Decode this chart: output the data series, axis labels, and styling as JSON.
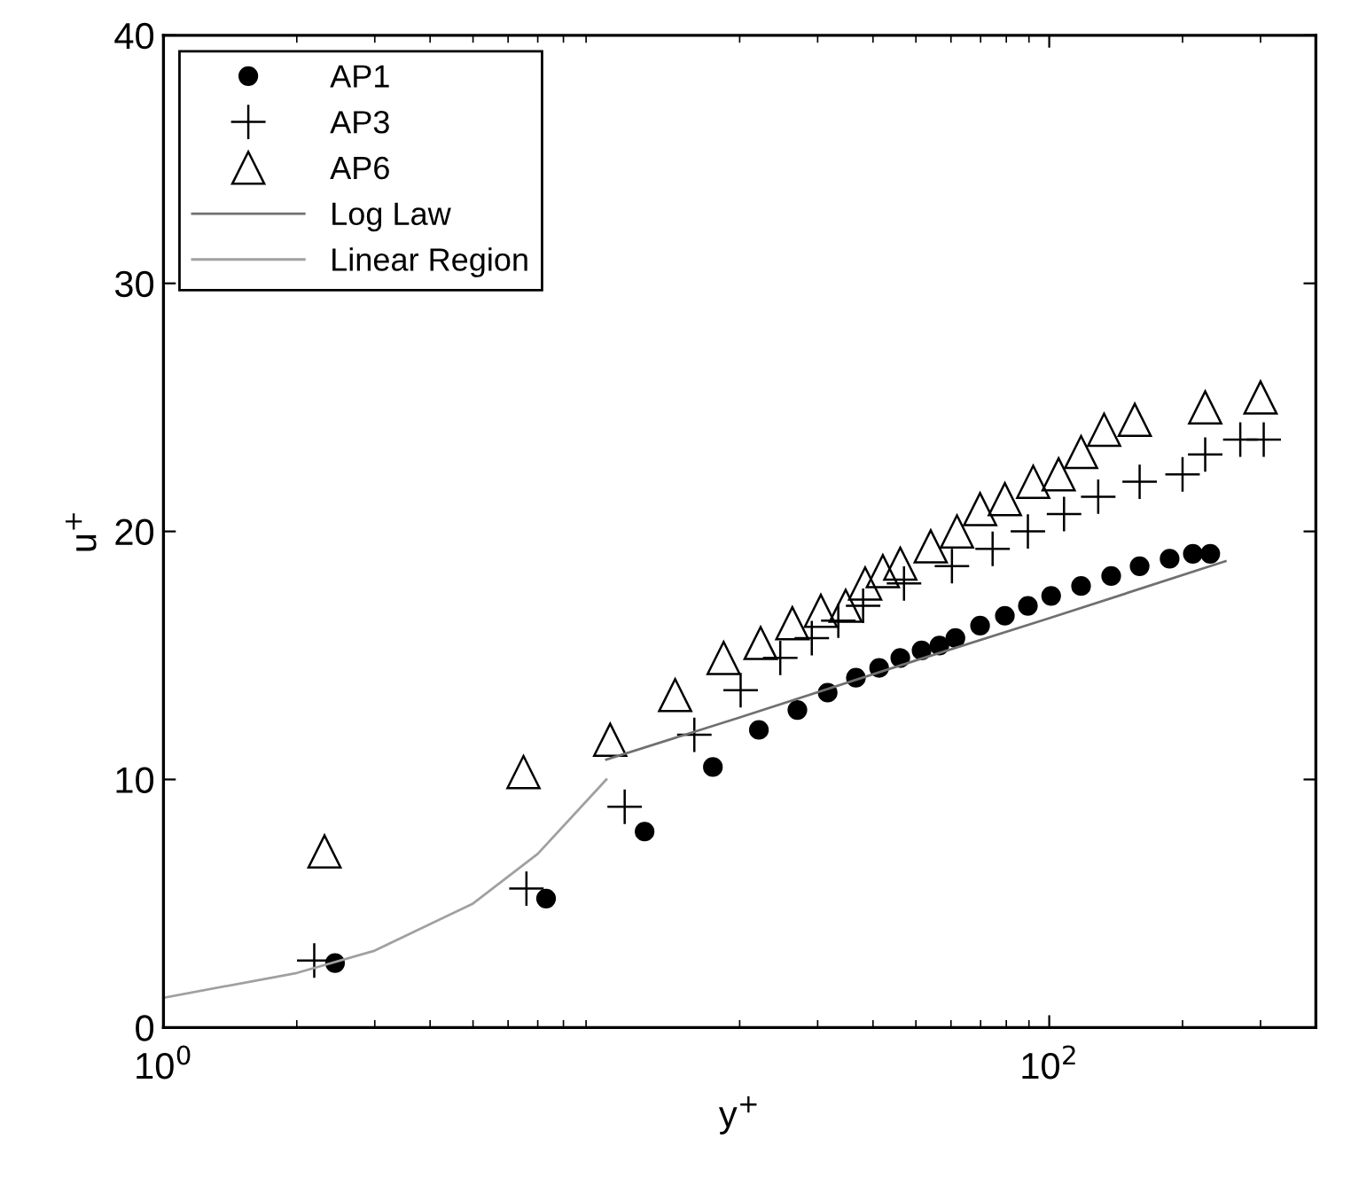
{
  "chart_data": {
    "type": "scatter",
    "xlabel": "y$^{+}$",
    "ylabel": "u$^{+}$",
    "log": "x",
    "xlim": [
      1,
      400
    ],
    "ylim": [
      0,
      40
    ],
    "xticks": [
      {
        "value": 1,
        "label": "10$^{0}$"
      },
      {
        "value": 100,
        "label": "10$^{2}$"
      }
    ],
    "yticks": [
      0,
      10,
      20,
      30,
      40
    ],
    "grid": false,
    "legend": "top left",
    "series": [
      {
        "name": "AP1",
        "marker": "circle",
        "color": "#000000",
        "x": [
          2.44,
          7.31,
          12.2,
          17.4,
          22.1,
          27.0,
          31.6,
          36.6,
          41.3,
          46.1,
          51.5,
          56.5,
          61.4,
          69.8,
          79.4,
          89.5,
          101,
          118,
          138,
          160,
          187,
          211,
          231
        ],
        "values": [
          2.6,
          5.2,
          7.9,
          10.5,
          12.0,
          12.8,
          13.5,
          14.1,
          14.5,
          14.9,
          15.2,
          15.4,
          15.7,
          16.2,
          16.6,
          17.0,
          17.4,
          17.8,
          18.2,
          18.6,
          18.9,
          19.1,
          19.1
        ]
      },
      {
        "name": "AP3",
        "marker": "cross",
        "color": "#000000",
        "x": [
          2.19,
          6.6,
          11.0,
          15.8,
          20.1,
          24.7,
          29.1,
          33.4,
          38.0,
          47.0,
          60.3,
          74.5,
          89.5,
          108,
          129,
          160,
          200,
          225,
          270,
          305
        ],
        "values": [
          2.7,
          5.6,
          8.9,
          11.8,
          13.6,
          14.9,
          15.7,
          16.4,
          17.0,
          17.9,
          18.6,
          19.3,
          20.0,
          20.7,
          21.4,
          22.0,
          22.3,
          23.1,
          23.7,
          23.7
        ]
      },
      {
        "name": "AP6",
        "marker": "triangle",
        "color": "#000000",
        "x": [
          2.31,
          6.5,
          10.2,
          14.3,
          18.4,
          22.3,
          26.3,
          30.5,
          34.7,
          38.4,
          42.1,
          46.1,
          54.0,
          61.9,
          69.8,
          79.4,
          92,
          105,
          118,
          133,
          156,
          225,
          300
        ],
        "values": [
          7.1,
          10.3,
          11.6,
          13.4,
          14.9,
          15.5,
          16.3,
          16.8,
          17.0,
          17.9,
          18.4,
          18.7,
          19.4,
          20.0,
          20.9,
          21.3,
          22.0,
          22.3,
          23.2,
          24.1,
          24.5,
          25.0,
          25.4
        ]
      },
      {
        "name": "Log Law",
        "type": "line",
        "color": "#707070",
        "x": [
          10,
          20,
          50,
          100,
          250
        ],
        "values": [
          10.8,
          12.5,
          14.8,
          16.5,
          18.8
        ]
      },
      {
        "name": "Linear Region",
        "type": "line",
        "color": "#a0a0a0",
        "x": [
          1,
          2,
          3,
          5,
          7,
          10
        ],
        "values": [
          1.2,
          2.2,
          3.1,
          5.0,
          7.0,
          10.0
        ]
      }
    ]
  }
}
